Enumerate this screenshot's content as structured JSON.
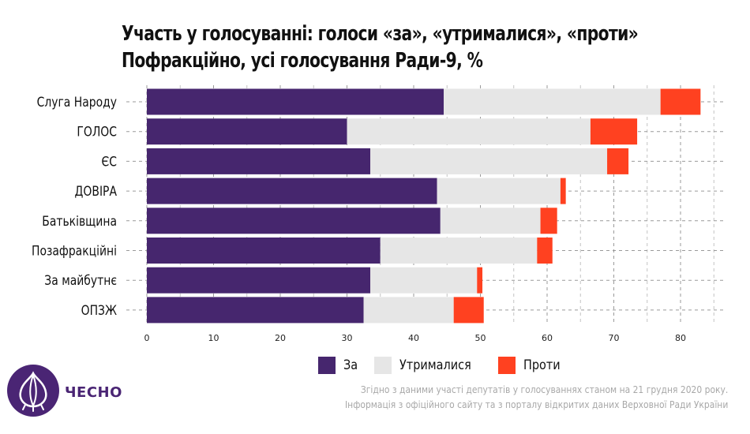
{
  "chart_data": {
    "type": "bar",
    "orientation": "horizontal",
    "stacked": true,
    "title": "Участь у голосуванні: голоси «за», «утрималися», «проти»",
    "subtitle": "Пофракційно, усі голосування Ради-9, %",
    "categories": [
      "Слуга Народу",
      "ГОЛОС",
      "ЄС",
      "ДОВІРА",
      "Батьківщина",
      "Позафракційні",
      "За майбутнє",
      "ОПЗЖ"
    ],
    "series": [
      {
        "name": "За",
        "color": "#46266e",
        "values": [
          44.5,
          30.0,
          33.5,
          43.5,
          44.0,
          35.0,
          33.5,
          32.5
        ]
      },
      {
        "name": "Утрималися",
        "color": "#e6e6e6",
        "values": [
          32.5,
          36.5,
          35.5,
          18.5,
          15.0,
          23.5,
          16.0,
          13.5
        ]
      },
      {
        "name": "Проти",
        "color": "#ff4120",
        "values": [
          6.0,
          7.0,
          3.2,
          0.8,
          2.5,
          2.3,
          0.8,
          4.5
        ]
      }
    ],
    "x_ticks": [
      0,
      10,
      20,
      30,
      40,
      50,
      60,
      70,
      80
    ],
    "xlim": [
      0,
      85
    ],
    "grid": true,
    "legend_position": "bottom"
  },
  "legend": {
    "za": "За",
    "utrymalysia": "Утрималися",
    "proty": "Проти"
  },
  "brand": {
    "name": "ЧЕСНО"
  },
  "source": {
    "line1": "Згідно з даними участі депутатів у голосуваннях станом на 21 грудня 2020 року.",
    "line2": "Інформація з офіційного сайту та з порталу відкритих даних Верховної Ради України"
  },
  "colors": {
    "za": "#46266e",
    "utrymalysia": "#e6e6e6",
    "proty": "#ff4120",
    "brand": "#4a2574"
  }
}
